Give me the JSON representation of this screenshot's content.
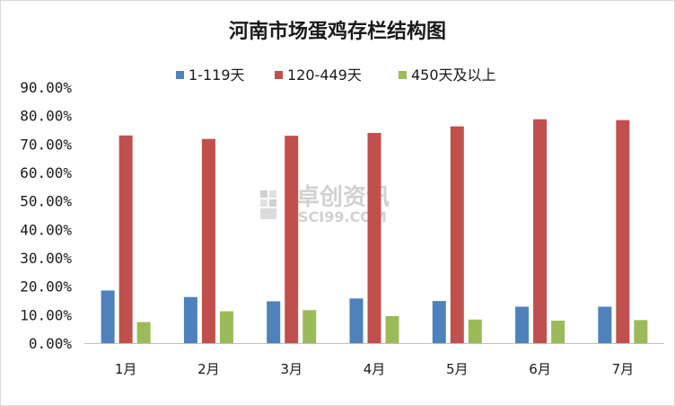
{
  "chart_data": {
    "type": "bar",
    "title": "河南市场蛋鸡存栏结构图",
    "categories": [
      "1月",
      "2月",
      "3月",
      "4月",
      "5月",
      "6月",
      "7月"
    ],
    "series": [
      {
        "name": "1-119天",
        "color": "#4f81bd",
        "values": [
          18.5,
          16.2,
          14.7,
          15.7,
          14.8,
          12.8,
          12.8
        ]
      },
      {
        "name": "120-449天",
        "color": "#c0504d",
        "values": [
          73.0,
          71.8,
          72.9,
          73.9,
          76.2,
          78.7,
          78.4
        ]
      },
      {
        "name": "450天及以上",
        "color": "#9bbb59",
        "values": [
          7.4,
          11.2,
          11.6,
          9.5,
          8.3,
          7.9,
          8.1
        ]
      }
    ],
    "ylim": [
      0,
      90
    ],
    "yticks": [
      "0.00%",
      "10.00%",
      "20.00%",
      "30.00%",
      "40.00%",
      "50.00%",
      "60.00%",
      "70.00%",
      "80.00%",
      "90.00%"
    ],
    "legend": "top",
    "grid": false
  },
  "watermark": {
    "cn": "卓创资讯",
    "en": "SCI99.COM"
  }
}
